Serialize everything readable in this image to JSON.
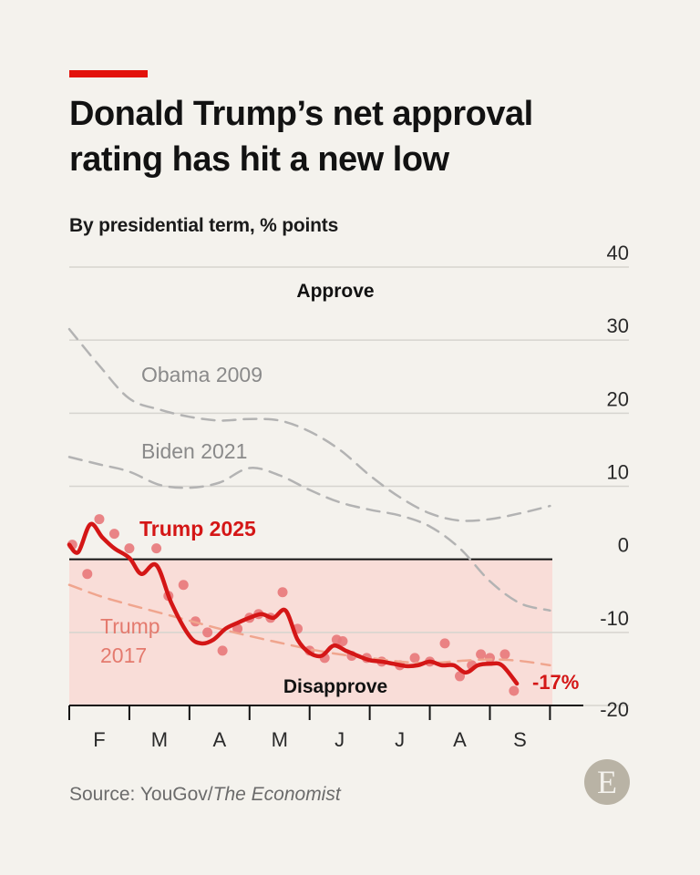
{
  "title": "Donald Trump’s net approval rating has hit a new low",
  "subtitle": "By presidential term, % points",
  "source_prefix": "Source: YouGov/",
  "source_italic": "The Economist",
  "logo_letter": "E",
  "colors": {
    "accent": "#e3120b",
    "trump2025": "#d41616",
    "trump2025_dots": "#e8787a",
    "trump2017": "#f0a58e",
    "trump2017_label": "#e47a6e",
    "comparison": "#b3b3b3",
    "disapprove_band": "#f9ddd8",
    "grid": "#d6d4cf",
    "zero_line": "#121212"
  },
  "chart_data": {
    "type": "line",
    "ylim": [
      -20,
      40
    ],
    "y_ticks": [
      40,
      30,
      20,
      10,
      0,
      -10,
      -20
    ],
    "x_range": [
      0,
      8.1
    ],
    "x_ticks_months": [
      "F",
      "M",
      "A",
      "M",
      "J",
      "J",
      "A",
      "S"
    ],
    "grid": true,
    "zones": {
      "top": "Approve",
      "bottom": "Disapprove"
    },
    "series": [
      {
        "name": "Obama 2009",
        "style": "dashed",
        "x": [
          0,
          0.5,
          1,
          1.5,
          2,
          2.5,
          3,
          3.5,
          4,
          4.5,
          5,
          5.5,
          6,
          6.5,
          7,
          7.5,
          8
        ],
        "values": [
          31.5,
          26.5,
          22,
          20.5,
          19.5,
          19,
          19.2,
          19,
          17.5,
          15,
          11.5,
          8.5,
          6.3,
          5.3,
          5.5,
          6.3,
          7.3
        ]
      },
      {
        "name": "Biden 2021",
        "style": "dashed",
        "x": [
          0,
          0.5,
          1,
          1.5,
          2,
          2.5,
          3,
          3.5,
          4,
          4.5,
          5,
          5.5,
          6,
          6.5,
          7,
          7.5,
          8
        ],
        "values": [
          14,
          13,
          12,
          10.2,
          9.8,
          10.5,
          12.5,
          11.5,
          9.5,
          7.8,
          6.8,
          6,
          4.5,
          1.5,
          -3,
          -6,
          -7
        ]
      },
      {
        "name": "Trump 2017",
        "style": "dashed",
        "x": [
          0,
          0.5,
          1,
          1.5,
          2,
          2.5,
          3,
          3.5,
          4,
          4.5,
          5,
          5.5,
          6,
          6.5,
          7,
          7.5,
          8
        ],
        "values": [
          -3.5,
          -5,
          -6.2,
          -7.3,
          -8.4,
          -9.5,
          -10.5,
          -11.4,
          -12.3,
          -13,
          -13.5,
          -14,
          -14.2,
          -13.9,
          -13.7,
          -13.9,
          -14.5
        ]
      },
      {
        "name": "Trump 2025",
        "style": "solid",
        "x": [
          0,
          0.15,
          0.35,
          0.55,
          0.75,
          1,
          1.2,
          1.45,
          1.7,
          2,
          2.2,
          2.4,
          2.6,
          2.8,
          3,
          3.2,
          3.4,
          3.6,
          3.8,
          4,
          4.2,
          4.4,
          4.6,
          4.8,
          5,
          5.2,
          5.4,
          5.6,
          5.8,
          6,
          6.2,
          6.4,
          6.6,
          6.8,
          7,
          7.2,
          7.45
        ],
        "values": [
          2,
          1,
          4.8,
          3,
          1.5,
          0.2,
          -2,
          -0.8,
          -6,
          -10.5,
          -11.5,
          -11,
          -9.5,
          -8.7,
          -8,
          -7.5,
          -8,
          -7,
          -11,
          -12.8,
          -13.2,
          -11.8,
          -12.5,
          -13.2,
          -13.8,
          -14,
          -14.3,
          -14.6,
          -14.5,
          -14,
          -14.5,
          -14.5,
          -15.5,
          -14.5,
          -14.3,
          -14.5,
          -17
        ]
      }
    ],
    "trump2025_points": {
      "x": [
        0.05,
        0.3,
        0.5,
        0.75,
        1,
        1.45,
        1.65,
        1.9,
        2.1,
        2.3,
        2.55,
        2.8,
        3,
        3.15,
        3.35,
        3.55,
        3.8,
        4,
        4.25,
        4.45,
        4.55,
        4.7,
        4.95,
        5.2,
        5.5,
        5.75,
        6,
        6.25,
        6.5,
        6.7,
        6.85,
        7,
        7.25,
        7.4
      ],
      "values": [
        2,
        -2,
        5.5,
        3.5,
        1.5,
        1.5,
        -5,
        -3.5,
        -8.5,
        -10,
        -12.5,
        -9.5,
        -8,
        -7.5,
        -8,
        -4.5,
        -9.5,
        -12.5,
        -13.5,
        -11,
        -11.2,
        -13.2,
        -13.5,
        -14,
        -14.5,
        -13.5,
        -14,
        -11.5,
        -16,
        -14.5,
        -13,
        -13.5,
        -13,
        -18
      ]
    },
    "labels": {
      "end_value": "-17%"
    }
  }
}
